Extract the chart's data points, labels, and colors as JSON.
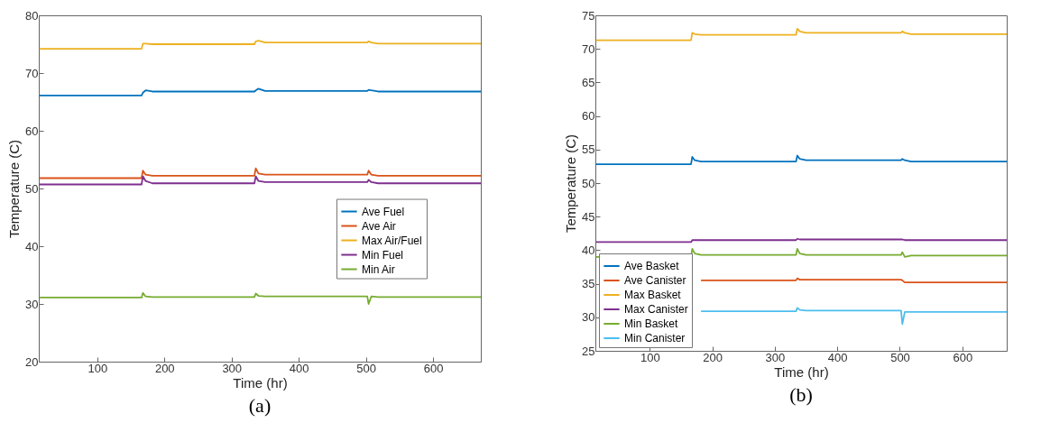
{
  "chart_data": [
    {
      "type": "line",
      "xlabel": "Time (hr)",
      "ylabel": "Temperature (C)",
      "annotations": [
        "(a)"
      ],
      "xlim": [
        13,
        671
      ],
      "ylim": [
        20,
        80
      ],
      "xticks": [
        100,
        200,
        300,
        400,
        500,
        600
      ],
      "yticks": [
        20,
        30,
        40,
        50,
        60,
        70,
        80
      ],
      "legend": "right",
      "x": [
        14,
        166,
        168,
        172,
        182,
        334,
        336,
        340,
        350,
        502,
        504,
        508,
        518,
        671
      ],
      "series": [
        {
          "name": "Ave Fuel",
          "color": "#0072bd",
          "values": [
            66.1,
            66.1,
            66.6,
            67.0,
            66.8,
            66.8,
            67.0,
            67.3,
            66.9,
            66.9,
            67.1,
            67.0,
            66.8,
            66.8
          ]
        },
        {
          "name": "Ave Air",
          "color": "#d95319",
          "values": [
            51.8,
            51.8,
            53.1,
            52.4,
            52.2,
            52.2,
            53.5,
            52.6,
            52.4,
            52.4,
            53.1,
            52.4,
            52.2,
            52.2
          ]
        },
        {
          "name": "Max Air/Fuel",
          "color": "#edb120",
          "values": [
            74.2,
            74.2,
            75.1,
            75.1,
            75.0,
            75.0,
            75.5,
            75.6,
            75.3,
            75.3,
            75.5,
            75.3,
            75.1,
            75.1
          ]
        },
        {
          "name": "Min Fuel",
          "color": "#7e2f8e",
          "values": [
            50.7,
            50.7,
            52.1,
            51.3,
            50.9,
            50.9,
            52.1,
            51.3,
            51.1,
            51.1,
            51.5,
            51.1,
            50.9,
            50.9
          ]
        },
        {
          "name": "Min Air",
          "color": "#77ac30",
          "values": [
            31.1,
            31.1,
            31.9,
            31.3,
            31.2,
            31.2,
            31.8,
            31.4,
            31.3,
            31.3,
            30.0,
            31.3,
            31.2,
            31.2
          ]
        }
      ]
    },
    {
      "type": "line",
      "xlabel": "Time (hr)",
      "ylabel": "Temperature (C)",
      "annotations": [
        "(b)"
      ],
      "xlim": [
        13,
        671
      ],
      "ylim": [
        25,
        75
      ],
      "xticks": [
        100,
        200,
        300,
        400,
        500,
        600
      ],
      "yticks": [
        25,
        30,
        35,
        40,
        45,
        50,
        55,
        60,
        65,
        70,
        75
      ],
      "legend": "bottom left",
      "x": [
        14,
        166,
        168,
        172,
        182,
        334,
        336,
        340,
        350,
        502,
        504,
        508,
        518,
        671
      ],
      "series": [
        {
          "name": "Ave Basket",
          "color": "#0072bd",
          "values": [
            52.8,
            52.8,
            53.9,
            53.4,
            53.2,
            53.2,
            54.1,
            53.6,
            53.4,
            53.4,
            53.6,
            53.4,
            53.2,
            53.2
          ]
        },
        {
          "name": "Ave Canister",
          "color": "#d95319",
          "values": [
            null,
            null,
            null,
            null,
            35.5,
            35.5,
            35.8,
            35.6,
            35.6,
            35.6,
            35.5,
            35.2,
            35.2,
            35.2
          ]
        },
        {
          "name": "Max Basket",
          "color": "#edb120",
          "values": [
            71.3,
            71.3,
            72.4,
            72.2,
            72.1,
            72.1,
            73.0,
            72.6,
            72.4,
            72.4,
            72.6,
            72.4,
            72.2,
            72.2
          ]
        },
        {
          "name": "Max Canister",
          "color": "#7e2f8e",
          "values": [
            41.2,
            41.2,
            41.5,
            41.5,
            41.5,
            41.5,
            41.7,
            41.6,
            41.6,
            41.6,
            41.6,
            41.5,
            41.5,
            41.5
          ]
        },
        {
          "name": "Min Basket",
          "color": "#77ac30",
          "values": [
            39.0,
            39.0,
            40.2,
            39.5,
            39.3,
            39.3,
            40.2,
            39.5,
            39.3,
            39.3,
            39.7,
            39.0,
            39.2,
            39.2
          ]
        },
        {
          "name": "Min Canister",
          "color": "#4dbeee",
          "values": [
            null,
            null,
            null,
            null,
            30.9,
            30.9,
            31.4,
            31.1,
            31.0,
            31.0,
            29.0,
            30.8,
            30.8,
            30.8
          ]
        }
      ]
    }
  ]
}
